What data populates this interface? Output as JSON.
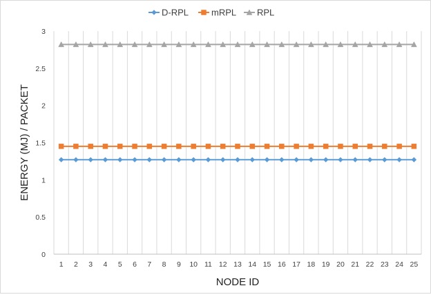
{
  "chart_data": {
    "type": "line",
    "xlabel": "NODE ID",
    "ylabel": "ENERGY (MJ) / PACKET",
    "categories": [
      "1",
      "2",
      "3",
      "4",
      "5",
      "6",
      "7",
      "8",
      "9",
      "10",
      "11",
      "12",
      "13",
      "14",
      "15",
      "16",
      "17",
      "18",
      "19",
      "20",
      "21",
      "22",
      "23",
      "24",
      "25"
    ],
    "ylim": [
      0,
      3
    ],
    "yticks": [
      "0",
      "0.5",
      "1",
      "1.5",
      "2",
      "2.5",
      "3"
    ],
    "grid": "vertical",
    "legend_position": "top",
    "series": [
      {
        "name": "D-RPL",
        "color": "#5B9BD5",
        "marker": "diamond",
        "values": [
          1.27,
          1.27,
          1.27,
          1.27,
          1.27,
          1.27,
          1.27,
          1.27,
          1.27,
          1.27,
          1.27,
          1.27,
          1.27,
          1.27,
          1.27,
          1.27,
          1.27,
          1.27,
          1.27,
          1.27,
          1.27,
          1.27,
          1.27,
          1.27,
          1.27
        ]
      },
      {
        "name": "mRPL",
        "color": "#ED7D31",
        "marker": "square",
        "values": [
          1.45,
          1.45,
          1.45,
          1.45,
          1.45,
          1.45,
          1.45,
          1.45,
          1.45,
          1.45,
          1.45,
          1.45,
          1.45,
          1.45,
          1.45,
          1.45,
          1.45,
          1.45,
          1.45,
          1.45,
          1.45,
          1.45,
          1.45,
          1.45,
          1.45
        ]
      },
      {
        "name": "RPL",
        "color": "#A5A5A5",
        "marker": "triangle",
        "values": [
          2.82,
          2.82,
          2.82,
          2.82,
          2.82,
          2.82,
          2.82,
          2.82,
          2.82,
          2.82,
          2.82,
          2.82,
          2.82,
          2.82,
          2.82,
          2.82,
          2.82,
          2.82,
          2.82,
          2.82,
          2.82,
          2.82,
          2.82,
          2.82,
          2.82
        ]
      }
    ]
  }
}
